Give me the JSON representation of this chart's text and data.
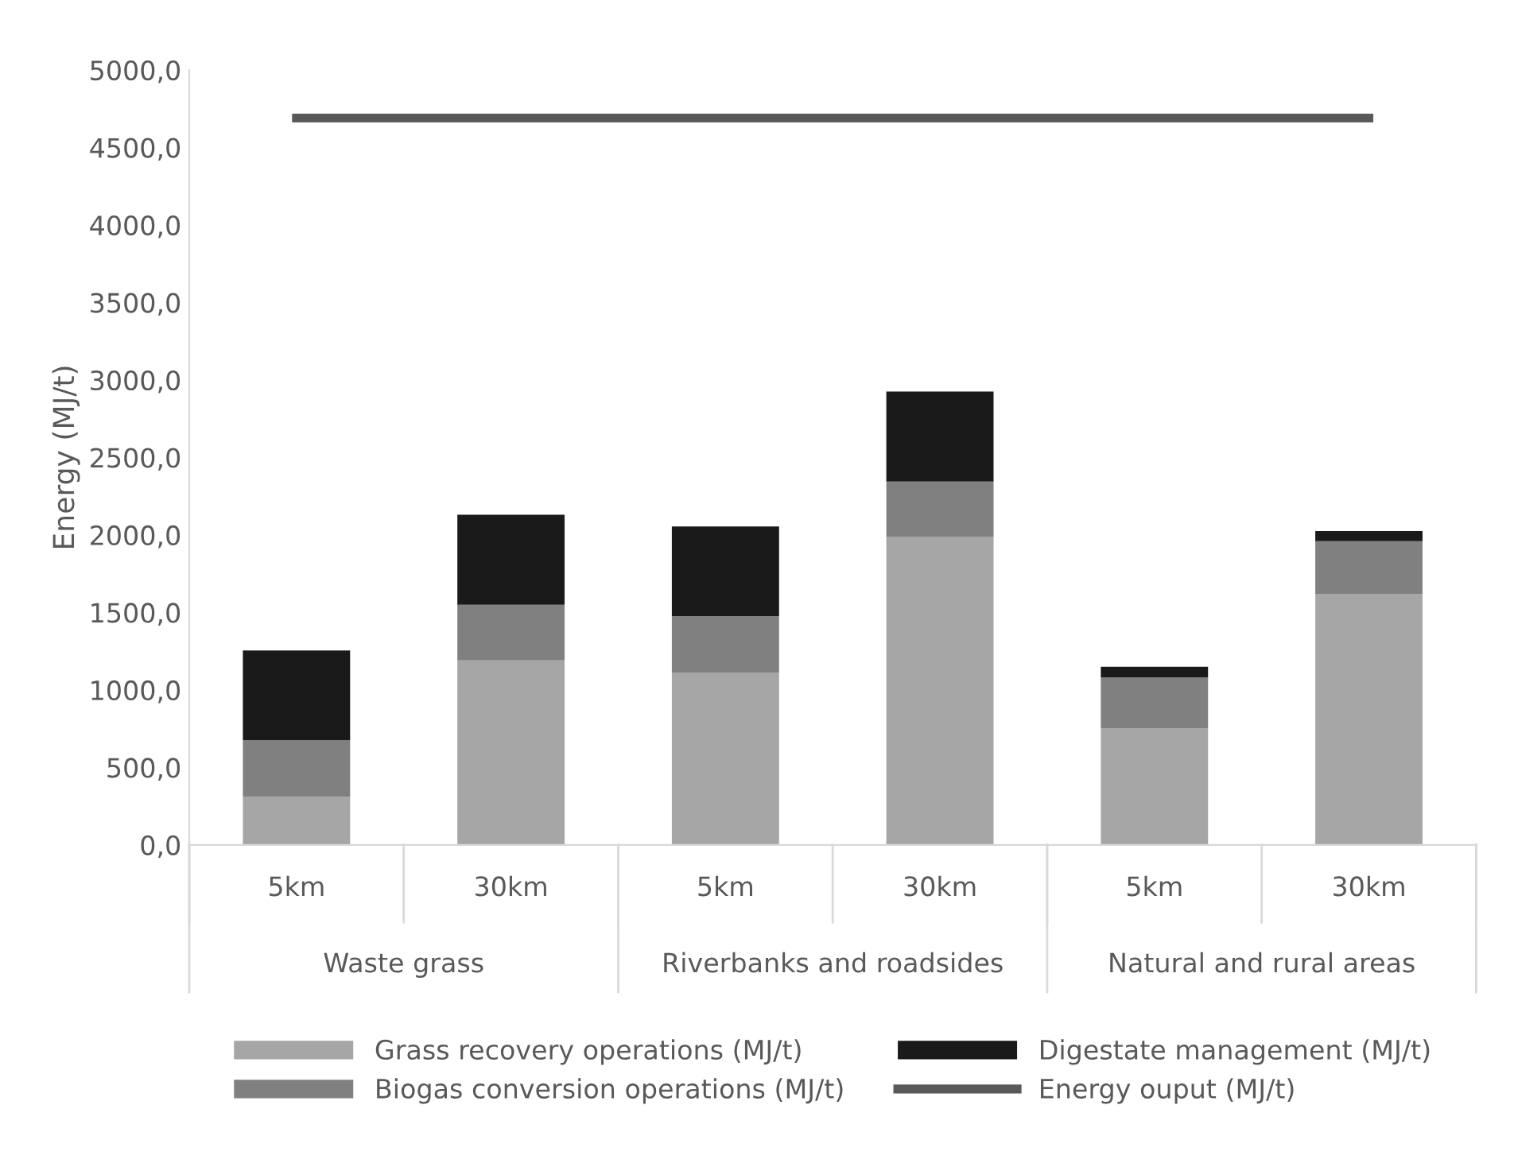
{
  "chart_data": {
    "type": "bar",
    "stacked": true,
    "ylabel": "Energy (MJ/t)",
    "categories": [
      "5km",
      "30km",
      "5km",
      "30km",
      "5km",
      "30km"
    ],
    "annotations": [
      "Waste grass",
      "Riverbanks and roadsides",
      "Natural and rural areas"
    ],
    "series": [
      {
        "name": "Grass recovery operations (MJ/t)",
        "color": "#a6a6a6",
        "values": [
          310,
          1190,
          1110,
          1990,
          750,
          1620
        ]
      },
      {
        "name": "Biogas conversion operations (MJ/t)",
        "color": "#808080",
        "values": [
          365,
          360,
          365,
          355,
          330,
          340
        ]
      },
      {
        "name": "Digestate management (MJ/t)",
        "color": "#1a1a1a",
        "values": [
          580,
          580,
          580,
          580,
          70,
          65
        ]
      },
      {
        "name": "Energy ouput (MJ/t)",
        "type": "line",
        "color": "#595959",
        "values": [
          4690,
          4690,
          4690,
          4690,
          4690,
          4690
        ]
      }
    ],
    "ylim": [
      0,
      5000
    ],
    "yticks": [
      {
        "value": 0,
        "label": "0,0"
      },
      {
        "value": 500,
        "label": "500,0"
      },
      {
        "value": 1000,
        "label": "1000,0"
      },
      {
        "value": 1500,
        "label": "1500,0"
      },
      {
        "value": 2000,
        "label": "2000,0"
      },
      {
        "value": 2500,
        "label": "2500,0"
      },
      {
        "value": 3000,
        "label": "3000,0"
      },
      {
        "value": 3500,
        "label": "3500,0"
      },
      {
        "value": 4000,
        "label": "4000,0"
      },
      {
        "value": 4500,
        "label": "4500,0"
      },
      {
        "value": 5000,
        "label": "5000,0"
      }
    ],
    "grid": false,
    "legend": "bottom"
  }
}
